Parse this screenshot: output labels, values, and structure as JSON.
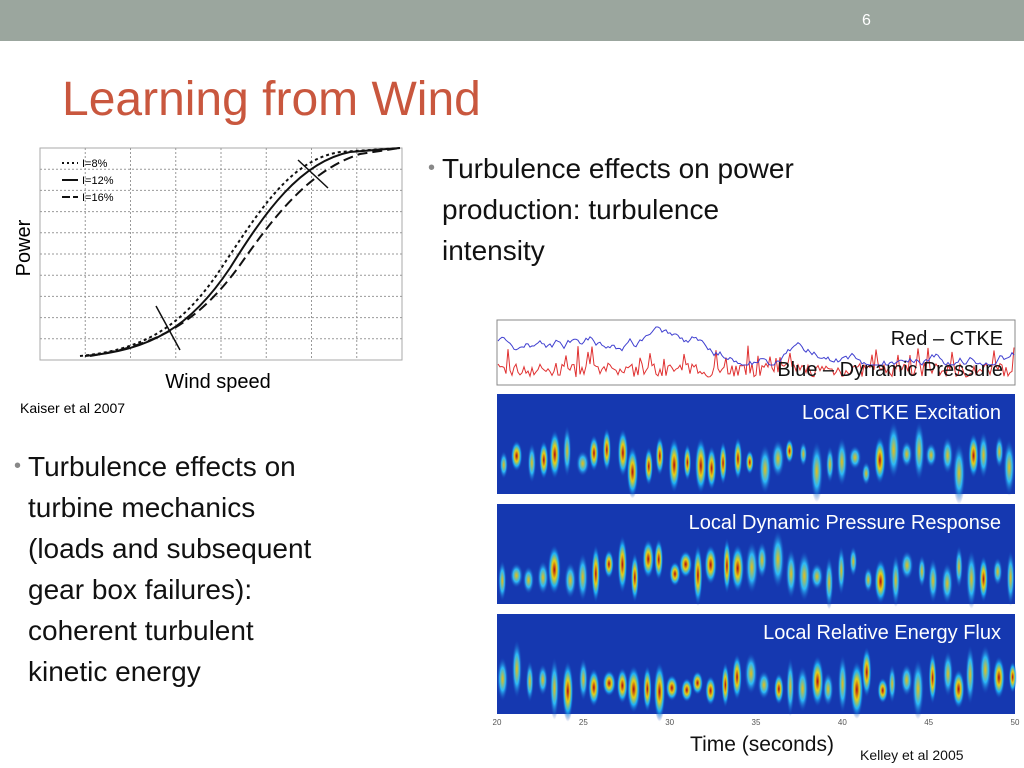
{
  "header": {
    "slide_number": "6"
  },
  "title": "Learning from Wind",
  "power_plot": {
    "legend": [
      "I=8%",
      "I=12%",
      "I=16%"
    ],
    "y_label": "Power",
    "x_label": "Wind speed",
    "caption": "Kaiser et al 2007"
  },
  "bullets": [
    {
      "lines": [
        "Turbulence effects on power",
        "production: turbulence",
        "intensity"
      ]
    },
    {
      "lines": [
        "Turbulence effects on",
        "turbine mechanics",
        "(loads and subsequent",
        "gear box failures):",
        "coherent turbulent",
        "kinetic energy"
      ]
    }
  ],
  "wavelet_figure": {
    "signal_labels": [
      "Red – CTKE",
      "Blue – Dynamic Pressure"
    ],
    "panel_labels": [
      "Local CTKE Excitation",
      "Local Dynamic Pressure Response",
      "Local Relative Energy Flux"
    ],
    "x_ticks": [
      "20",
      "25",
      "30",
      "35",
      "40",
      "45",
      "50"
    ],
    "x_label": "Time (seconds)",
    "caption": "Kelley et al 2005"
  }
}
